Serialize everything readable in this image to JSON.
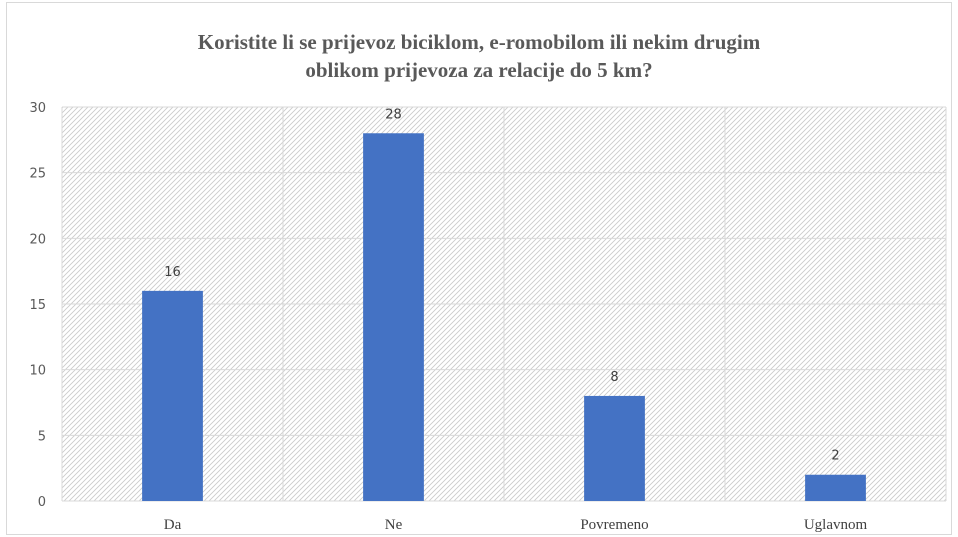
{
  "chart_data": {
    "type": "bar",
    "title_lines": [
      "Koristite li se prijevoz biciklom, e-romobilom ili nekim drugim",
      "oblikom prijevoza za relacije do 5 km?"
    ],
    "categories": [
      "Da",
      "Ne",
      "Povremeno",
      "Uglavnom"
    ],
    "values": [
      16,
      28,
      8,
      2
    ],
    "data_labels": [
      "16",
      "28",
      "8",
      "2"
    ],
    "ylim": [
      0,
      30
    ],
    "y_ticks": [
      0,
      5,
      10,
      15,
      20,
      25,
      30
    ],
    "y_tick_labels": [
      "0",
      "5",
      "10",
      "15",
      "20",
      "25",
      "30"
    ],
    "grid": true,
    "legend": "none",
    "bar_color": "#4472c4",
    "grid_color": "#d9d9d9",
    "plot_pattern": "diagonal-hatch"
  }
}
